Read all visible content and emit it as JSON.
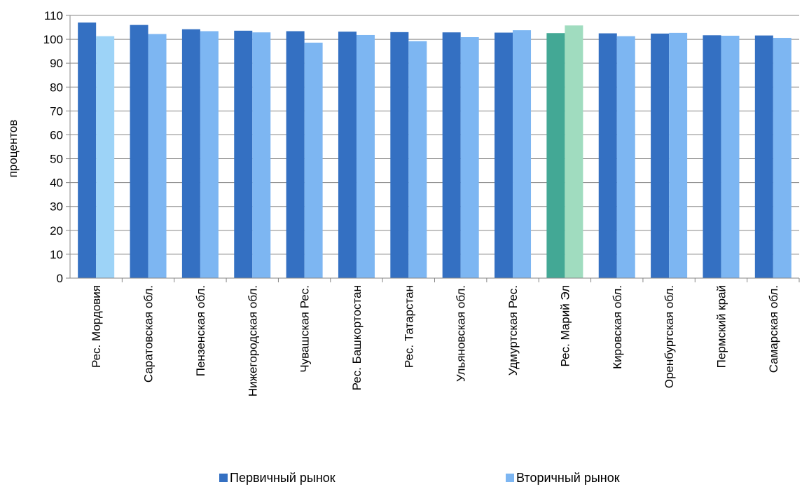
{
  "chart_data": {
    "type": "bar",
    "title": "",
    "xlabel": "",
    "ylabel": "процентов",
    "ylim": [
      0,
      110
    ],
    "y_ticks": [
      0,
      10,
      20,
      30,
      40,
      50,
      60,
      70,
      80,
      90,
      100,
      110
    ],
    "grid": true,
    "legend_position": "bottom",
    "categories": [
      "Рес. Мордовия",
      "Саратовская обл.",
      "Пензенская обл.",
      "Нижегородская обл.",
      "Чувашская Рес.",
      "Рес. Башкортостан",
      "Рес. Татарстан",
      "Ульяновская обл.",
      "Удмуртская Рес.",
      "Рес. Марий Эл",
      "Кировская обл.",
      "Оренбургская обл.",
      "Пермский край",
      "Самарская обл."
    ],
    "series": [
      {
        "name": "Первичный рынок",
        "color": "#3470C2",
        "values": [
          107.0,
          106.0,
          104.2,
          103.6,
          103.4,
          103.2,
          103.0,
          102.9,
          102.8,
          102.6,
          102.5,
          102.4,
          101.7,
          101.6
        ]
      },
      {
        "name": "Вторичный рынок",
        "color": "#7DB6F2",
        "values": [
          101.3,
          102.2,
          103.4,
          102.9,
          98.6,
          101.8,
          99.2,
          100.9,
          103.8,
          105.8,
          101.3,
          102.7,
          101.5,
          100.6
        ]
      }
    ],
    "highlight_colors": [
      {
        "category_index": 0,
        "series_index": 1,
        "color": "#9DD3F7"
      },
      {
        "category_index": 9,
        "series_index": 0,
        "color": "#43A895"
      },
      {
        "category_index": 9,
        "series_index": 1,
        "color": "#A0DCBF"
      }
    ],
    "gridline_color": "#868686",
    "axis_color": "#868686"
  }
}
